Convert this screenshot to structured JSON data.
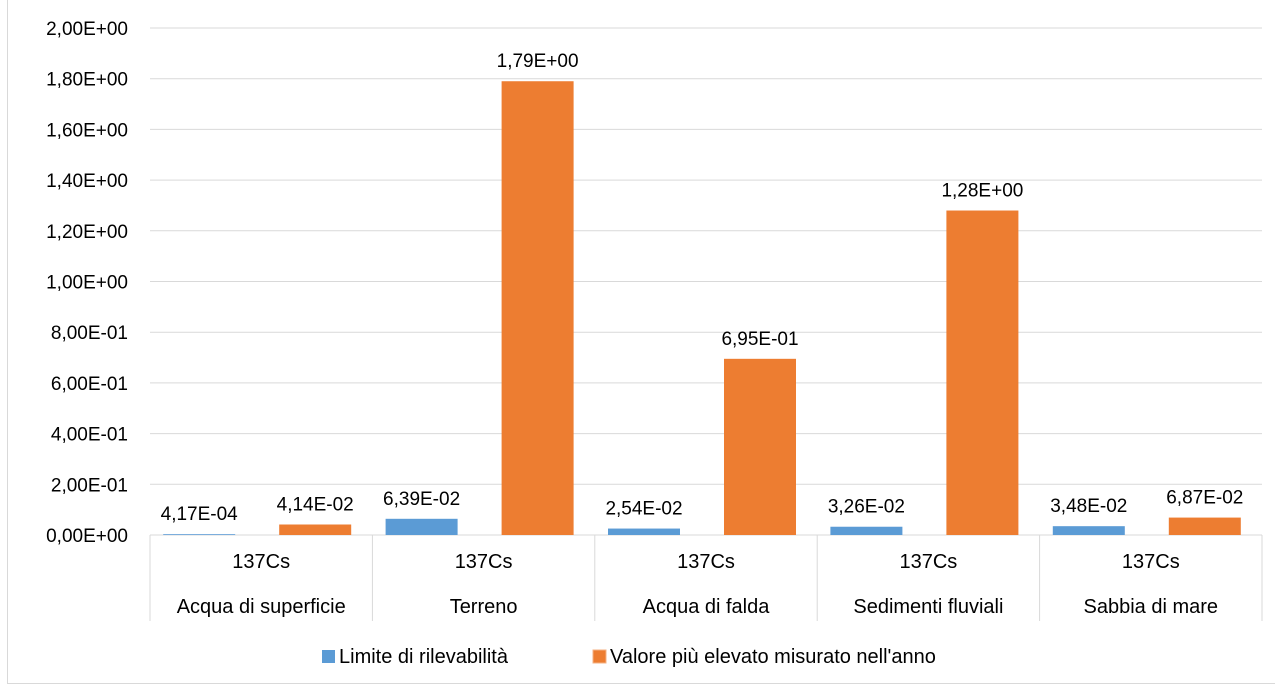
{
  "chart_data": {
    "type": "bar",
    "title": "",
    "xlabel": "",
    "ylabel": "",
    "ylim": [
      0,
      2.0
    ],
    "yticks": [
      "0,00E+00",
      "2,00E-01",
      "4,00E-01",
      "6,00E-01",
      "8,00E-01",
      "1,00E+00",
      "1,20E+00",
      "1,40E+00",
      "1,60E+00",
      "1,80E+00",
      "2,00E+00"
    ],
    "ytick_values": [
      0,
      0.2,
      0.4,
      0.6,
      0.8,
      1.0,
      1.2,
      1.4,
      1.6,
      1.8,
      2.0
    ],
    "grid": true,
    "legend_position": "bottom",
    "categories": [
      {
        "nuclide": "137Cs",
        "matrix": "Acqua di superficie"
      },
      {
        "nuclide": "137Cs",
        "matrix": "Terreno"
      },
      {
        "nuclide": "137Cs",
        "matrix": "Acqua di falda"
      },
      {
        "nuclide": "137Cs",
        "matrix": "Sedimenti fluviali"
      },
      {
        "nuclide": "137Cs",
        "matrix": "Sabbia di mare"
      }
    ],
    "series": [
      {
        "name": "Limite di rilevabilità",
        "color": "#5b9bd5",
        "values": [
          0.000417,
          0.0639,
          0.0254,
          0.0326,
          0.0348
        ],
        "labels": [
          "4,17E-04",
          "6,39E-02",
          "2,54E-02",
          "3,26E-02",
          "3,48E-02"
        ]
      },
      {
        "name": "Valore più elevato misurato nell'anno",
        "color": "#ed7d31",
        "values": [
          0.0414,
          1.79,
          0.695,
          1.28,
          0.0687
        ],
        "labels": [
          "4,14E-02",
          "1,79E+00",
          "6,95E-01",
          "1,28E+00",
          "6,87E-02"
        ]
      }
    ]
  }
}
